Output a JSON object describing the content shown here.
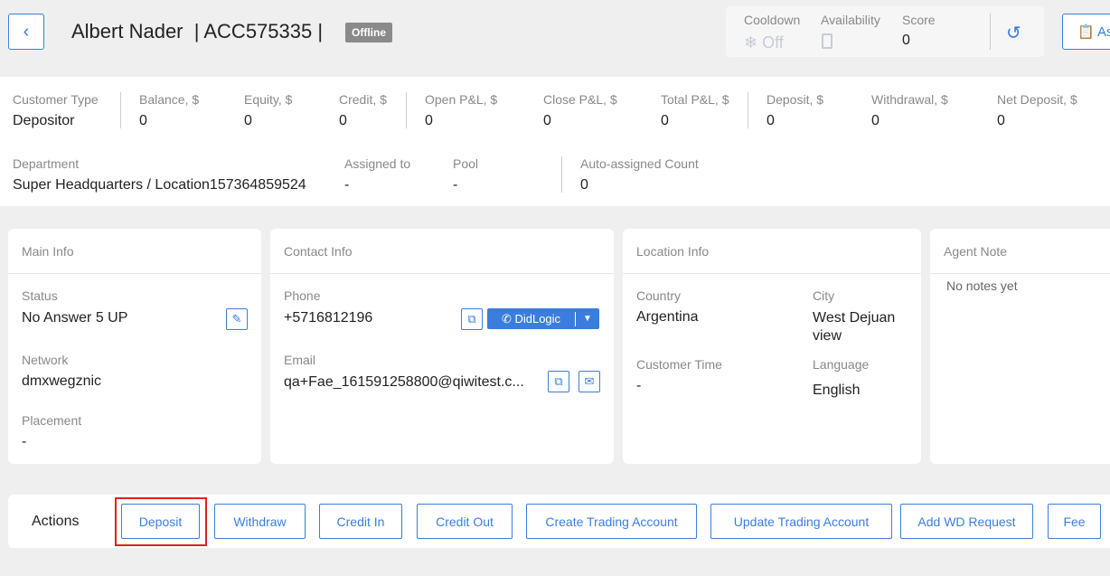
{
  "header": {
    "name": "Albert Nader",
    "account": "| ACC575335 |",
    "status": "Offline",
    "cooldown_label": "Cooldown",
    "cooldown_value": "Off",
    "availability_label": "Availability",
    "score_label": "Score",
    "score_value": "0",
    "assign_label": "As"
  },
  "stats": [
    {
      "label": "Customer Type",
      "value": "Depositor"
    },
    {
      "label": "Balance, $",
      "value": "0"
    },
    {
      "label": "Equity, $",
      "value": "0"
    },
    {
      "label": "Credit, $",
      "value": "0"
    },
    {
      "label": "Open P&L, $",
      "value": "0"
    },
    {
      "label": "Close P&L, $",
      "value": "0"
    },
    {
      "label": "Total P&L, $",
      "value": "0"
    },
    {
      "label": "Deposit, $",
      "value": "0"
    },
    {
      "label": "Withdrawal, $",
      "value": "0"
    },
    {
      "label": "Net Deposit, $",
      "value": "0"
    }
  ],
  "stats2": [
    {
      "label": "Department",
      "value": "Super Headquarters / Location157364859524"
    },
    {
      "label": "Assigned to",
      "value": "-"
    },
    {
      "label": "Pool",
      "value": "-"
    },
    {
      "label": "Auto-assigned Count",
      "value": "0"
    }
  ],
  "main_info": {
    "title": "Main Info",
    "status_label": "Status",
    "status": "No Answer 5 UP",
    "network_label": "Network",
    "network": "dmxwegznic",
    "placement_label": "Placement",
    "placement": "-"
  },
  "contact_info": {
    "title": "Contact Info",
    "phone_label": "Phone",
    "phone": "+5716812196",
    "call_label": "DidLogic",
    "email_label": "Email",
    "email": "qa+Fae_161591258800@qiwitest.c..."
  },
  "location_info": {
    "title": "Location Info",
    "country_label": "Country",
    "country": "Argentina",
    "city_label": "City",
    "city": "West Dejuan view",
    "time_label": "Customer Time",
    "time": "-",
    "language_label": "Language",
    "language": "English"
  },
  "agent_note": {
    "title": "Agent Note",
    "empty": "No notes yet"
  },
  "actions": {
    "title": "Actions",
    "buttons": [
      "Deposit",
      "Withdraw",
      "Credit In",
      "Credit Out",
      "Create Trading Account",
      "Update Trading Account",
      "Add WD Request",
      "Fee"
    ]
  },
  "colors": {
    "accent": "#3b7ddd",
    "highlight": "#e02020"
  }
}
